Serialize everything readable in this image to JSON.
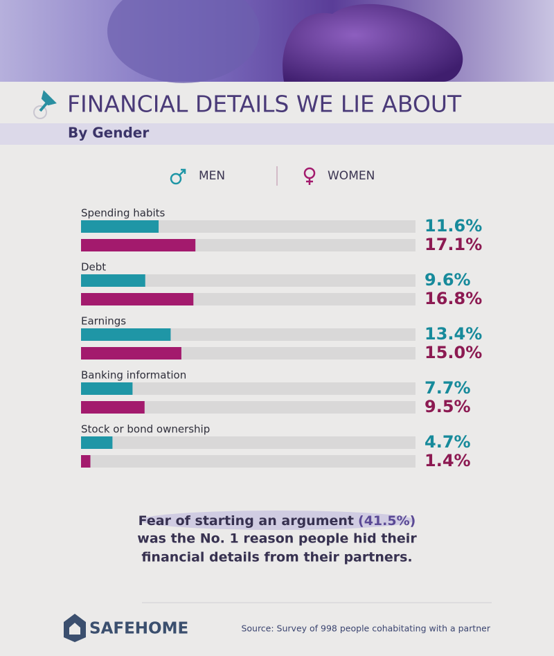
{
  "chart_data": {
    "type": "bar",
    "orientation": "horizontal",
    "title": "FINANCIAL DETAILS WE LIE ABOUT",
    "subtitle": "By Gender",
    "categories": [
      "Spending habits",
      "Debt",
      "Earnings",
      "Banking information",
      "Stock or bond ownership"
    ],
    "series": [
      {
        "name": "MEN",
        "color": "#1f96a6",
        "label_color": "#178a9b",
        "values": [
          11.6,
          9.6,
          13.4,
          7.7,
          4.7
        ],
        "value_labels": [
          "11.6%",
          "9.6%",
          "13.4%",
          "7.7%",
          "4.7%"
        ]
      },
      {
        "name": "WOMEN",
        "color": "#a31a6d",
        "label_color": "#8c1a52",
        "values": [
          17.1,
          16.8,
          15.0,
          9.5,
          1.4
        ],
        "value_labels": [
          "17.1%",
          "16.8%",
          "15.0%",
          "9.5%",
          "1.4%"
        ]
      }
    ],
    "xlim": [
      0,
      50
    ]
  },
  "note": [
    "Fear of starting an argument",
    "(41.5%)",
    "was the No. 1 reason people hid their",
    "financial details from their partners."
  ],
  "logo": "SAFEHOME",
  "source": "Source: Survey of 998 people cohabitating with a partner"
}
